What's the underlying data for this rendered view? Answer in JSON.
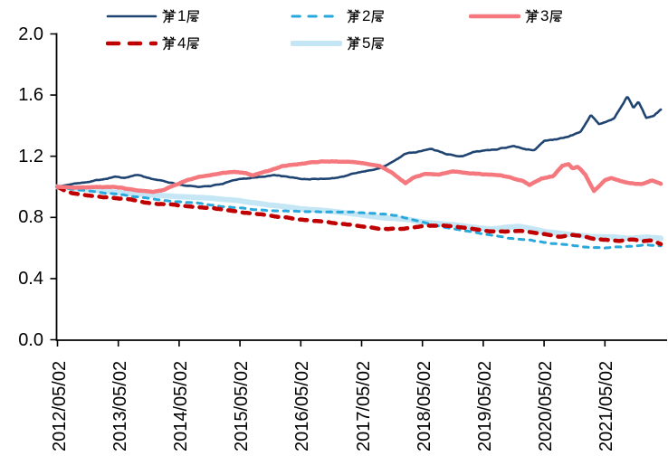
{
  "chart": {
    "title": "",
    "legend_rows": [
      [
        "第1层",
        "第2层",
        "第3层"
      ],
      [
        "第4层",
        "第5层"
      ]
    ]
  },
  "chart_data": {
    "type": "line",
    "title": "",
    "grid": false,
    "legend_position": "top",
    "x_axis": {
      "unit": "date",
      "tick_labels": [
        "2012/05/02",
        "2013/05/02",
        "2014/05/02",
        "2015/05/02",
        "2016/05/02",
        "2017/05/02",
        "2018/05/02",
        "2019/05/02",
        "2020/05/02",
        "2021/05/02"
      ],
      "tick_positions_years": [
        0,
        1,
        2,
        3,
        4,
        5,
        6,
        7,
        8,
        9
      ],
      "range_years": [
        0,
        9.93
      ]
    },
    "y_axis": {
      "tick_labels": [
        "0.0",
        "0.4",
        "0.8",
        "1.2",
        "1.6",
        "2.0"
      ],
      "tick_values": [
        0,
        0.4,
        0.8,
        1.2,
        1.6,
        2.0
      ],
      "range": [
        0,
        2.0
      ]
    },
    "series": [
      {
        "name": "第1层",
        "color": "#1F4471",
        "line_style": "solid",
        "line_width": 2.6,
        "dash": null,
        "z": 3,
        "noise_amp": 0.007,
        "points": [
          [
            0,
            1.0
          ],
          [
            0.2,
            1.015
          ],
          [
            0.4,
            1.03
          ],
          [
            0.7,
            1.05
          ],
          [
            0.95,
            1.072
          ],
          [
            1.1,
            1.06
          ],
          [
            1.33,
            1.08
          ],
          [
            1.6,
            1.048
          ],
          [
            1.9,
            1.022
          ],
          [
            2.1,
            1.008
          ],
          [
            2.33,
            1.0
          ],
          [
            2.6,
            1.012
          ],
          [
            2.9,
            1.038
          ],
          [
            3.2,
            1.06
          ],
          [
            3.55,
            1.08
          ],
          [
            3.8,
            1.06
          ],
          [
            4.1,
            1.047
          ],
          [
            4.45,
            1.055
          ],
          [
            4.7,
            1.07
          ],
          [
            4.95,
            1.095
          ],
          [
            5.3,
            1.125
          ],
          [
            5.5,
            1.16
          ],
          [
            5.7,
            1.21
          ],
          [
            5.9,
            1.225
          ],
          [
            6.15,
            1.248
          ],
          [
            6.4,
            1.215
          ],
          [
            6.65,
            1.205
          ],
          [
            6.9,
            1.235
          ],
          [
            7.25,
            1.252
          ],
          [
            7.5,
            1.27
          ],
          [
            7.7,
            1.25
          ],
          [
            7.85,
            1.245
          ],
          [
            8.0,
            1.3
          ],
          [
            8.2,
            1.315
          ],
          [
            8.4,
            1.33
          ],
          [
            8.6,
            1.36
          ],
          [
            8.77,
            1.47
          ],
          [
            8.9,
            1.41
          ],
          [
            9.05,
            1.43
          ],
          [
            9.15,
            1.45
          ],
          [
            9.37,
            1.6
          ],
          [
            9.47,
            1.52
          ],
          [
            9.55,
            1.56
          ],
          [
            9.68,
            1.45
          ],
          [
            9.8,
            1.47
          ],
          [
            9.92,
            1.51
          ]
        ]
      },
      {
        "name": "第2层",
        "color": "#29A8DC",
        "line_style": "dashed",
        "line_width": 3,
        "dash": [
          5.5,
          6.5
        ],
        "z": 1,
        "noise_amp": 0.004,
        "points": [
          [
            0,
            1.0
          ],
          [
            0.3,
            0.982
          ],
          [
            0.6,
            0.968
          ],
          [
            0.9,
            0.955
          ],
          [
            1.2,
            0.94
          ],
          [
            1.5,
            0.926
          ],
          [
            1.8,
            0.912
          ],
          [
            2.1,
            0.9
          ],
          [
            2.4,
            0.888
          ],
          [
            2.7,
            0.872
          ],
          [
            3.0,
            0.862
          ],
          [
            3.2,
            0.85
          ],
          [
            3.45,
            0.845
          ],
          [
            3.7,
            0.842
          ],
          [
            4.0,
            0.838
          ],
          [
            4.3,
            0.836
          ],
          [
            4.6,
            0.834
          ],
          [
            4.9,
            0.832
          ],
          [
            5.1,
            0.83
          ],
          [
            5.35,
            0.824
          ],
          [
            5.6,
            0.81
          ],
          [
            5.8,
            0.79
          ],
          [
            6.0,
            0.768
          ],
          [
            6.2,
            0.748
          ],
          [
            6.45,
            0.728
          ],
          [
            6.7,
            0.71
          ],
          [
            6.95,
            0.695
          ],
          [
            7.2,
            0.68
          ],
          [
            7.5,
            0.663
          ],
          [
            7.8,
            0.65
          ],
          [
            8.1,
            0.632
          ],
          [
            8.4,
            0.62
          ],
          [
            8.7,
            0.608
          ],
          [
            9.0,
            0.6
          ],
          [
            9.2,
            0.605
          ],
          [
            9.45,
            0.613
          ],
          [
            9.7,
            0.618
          ],
          [
            9.92,
            0.613
          ]
        ]
      },
      {
        "name": "第3层",
        "color": "#F4787D",
        "line_style": "solid",
        "line_width": 4.5,
        "dash": null,
        "z": 4,
        "noise_amp": 0.005,
        "points": [
          [
            0,
            1.0
          ],
          [
            0.3,
            0.995
          ],
          [
            0.6,
            1.0
          ],
          [
            0.9,
            0.998
          ],
          [
            1.15,
            0.985
          ],
          [
            1.4,
            0.972
          ],
          [
            1.58,
            0.967
          ],
          [
            1.75,
            0.982
          ],
          [
            1.97,
            1.02
          ],
          [
            2.15,
            1.048
          ],
          [
            2.33,
            1.07
          ],
          [
            2.63,
            1.088
          ],
          [
            2.9,
            1.098
          ],
          [
            3.1,
            1.09
          ],
          [
            3.2,
            1.075
          ],
          [
            3.45,
            1.1
          ],
          [
            3.7,
            1.135
          ],
          [
            4.0,
            1.152
          ],
          [
            4.2,
            1.163
          ],
          [
            4.45,
            1.17
          ],
          [
            4.7,
            1.165
          ],
          [
            4.95,
            1.158
          ],
          [
            5.15,
            1.145
          ],
          [
            5.3,
            1.135
          ],
          [
            5.5,
            1.09
          ],
          [
            5.72,
            1.022
          ],
          [
            5.85,
            1.06
          ],
          [
            6.05,
            1.088
          ],
          [
            6.25,
            1.078
          ],
          [
            6.5,
            1.095
          ],
          [
            6.75,
            1.088
          ],
          [
            7.0,
            1.08
          ],
          [
            7.3,
            1.076
          ],
          [
            7.5,
            1.055
          ],
          [
            7.65,
            1.04
          ],
          [
            7.76,
            1.015
          ],
          [
            7.95,
            1.055
          ],
          [
            8.15,
            1.07
          ],
          [
            8.3,
            1.14
          ],
          [
            8.4,
            1.148
          ],
          [
            8.47,
            1.12
          ],
          [
            8.55,
            1.135
          ],
          [
            8.68,
            1.08
          ],
          [
            8.82,
            0.975
          ],
          [
            9.0,
            1.045
          ],
          [
            9.1,
            1.057
          ],
          [
            9.25,
            1.04
          ],
          [
            9.4,
            1.028
          ],
          [
            9.6,
            1.02
          ],
          [
            9.77,
            1.042
          ],
          [
            9.92,
            1.02
          ]
        ]
      },
      {
        "name": "第4层",
        "color": "#C00000",
        "line_style": "dashed",
        "line_width": 4.5,
        "dash": [
          8,
          8
        ],
        "z": 2,
        "noise_amp": 0.004,
        "points": [
          [
            0,
            1.0
          ],
          [
            0.12,
            0.975
          ],
          [
            0.25,
            0.958
          ],
          [
            0.45,
            0.948
          ],
          [
            0.65,
            0.938
          ],
          [
            0.85,
            0.93
          ],
          [
            1.05,
            0.924
          ],
          [
            1.25,
            0.912
          ],
          [
            1.45,
            0.895
          ],
          [
            1.65,
            0.888
          ],
          [
            1.85,
            0.886
          ],
          [
            2.05,
            0.878
          ],
          [
            2.25,
            0.868
          ],
          [
            2.5,
            0.864
          ],
          [
            2.7,
            0.852
          ],
          [
            2.9,
            0.84
          ],
          [
            3.1,
            0.828
          ],
          [
            3.35,
            0.818
          ],
          [
            3.6,
            0.806
          ],
          [
            3.85,
            0.794
          ],
          [
            4.1,
            0.782
          ],
          [
            4.35,
            0.772
          ],
          [
            4.6,
            0.76
          ],
          [
            4.85,
            0.75
          ],
          [
            5.1,
            0.74
          ],
          [
            5.35,
            0.728
          ],
          [
            5.6,
            0.726
          ],
          [
            5.85,
            0.736
          ],
          [
            6.1,
            0.744
          ],
          [
            6.35,
            0.747
          ],
          [
            6.6,
            0.736
          ],
          [
            6.85,
            0.722
          ],
          [
            7.1,
            0.712
          ],
          [
            7.35,
            0.708
          ],
          [
            7.6,
            0.713
          ],
          [
            7.85,
            0.7
          ],
          [
            8.05,
            0.688
          ],
          [
            8.25,
            0.676
          ],
          [
            8.45,
            0.69
          ],
          [
            8.65,
            0.678
          ],
          [
            8.85,
            0.66
          ],
          [
            9.05,
            0.655
          ],
          [
            9.25,
            0.646
          ],
          [
            9.45,
            0.658
          ],
          [
            9.6,
            0.644
          ],
          [
            9.75,
            0.65
          ],
          [
            9.92,
            0.627
          ]
        ]
      },
      {
        "name": "第5层",
        "color": "#C5E7F5",
        "line_style": "solid",
        "line_width": 6,
        "dash": null,
        "z": 0,
        "noise_amp": 0.003,
        "points": [
          [
            0,
            1.0
          ],
          [
            0.3,
            0.99
          ],
          [
            0.6,
            0.98
          ],
          [
            0.9,
            0.966
          ],
          [
            1.2,
            0.955
          ],
          [
            1.5,
            0.946
          ],
          [
            1.8,
            0.94
          ],
          [
            2.1,
            0.933
          ],
          [
            2.4,
            0.928
          ],
          [
            2.7,
            0.92
          ],
          [
            3.0,
            0.908
          ],
          [
            3.25,
            0.893
          ],
          [
            3.5,
            0.88
          ],
          [
            3.75,
            0.87
          ],
          [
            4.0,
            0.857
          ],
          [
            4.3,
            0.846
          ],
          [
            4.6,
            0.838
          ],
          [
            4.9,
            0.822
          ],
          [
            5.15,
            0.81
          ],
          [
            5.45,
            0.796
          ],
          [
            5.75,
            0.786
          ],
          [
            6.0,
            0.77
          ],
          [
            6.3,
            0.756
          ],
          [
            6.6,
            0.748
          ],
          [
            6.9,
            0.732
          ],
          [
            7.15,
            0.724
          ],
          [
            7.4,
            0.736
          ],
          [
            7.6,
            0.74
          ],
          [
            7.8,
            0.726
          ],
          [
            8.05,
            0.706
          ],
          [
            8.3,
            0.695
          ],
          [
            8.55,
            0.684
          ],
          [
            8.8,
            0.673
          ],
          [
            9.05,
            0.673
          ],
          [
            9.25,
            0.668
          ],
          [
            9.45,
            0.663
          ],
          [
            9.65,
            0.673
          ],
          [
            9.8,
            0.668
          ],
          [
            9.92,
            0.663
          ]
        ]
      }
    ]
  }
}
